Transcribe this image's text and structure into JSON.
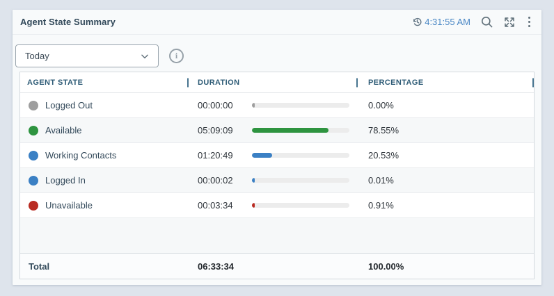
{
  "widget": {
    "title": "Agent State Summary",
    "last_refresh_time": "4:31:55 AM",
    "icons": {
      "history_clock": "history-clock-icon",
      "search": "search-icon",
      "expand": "expand-icon",
      "menu": "kebab-menu-icon",
      "dropdown_chevron": "chevron-down-icon",
      "info": "info-icon"
    }
  },
  "filter_dropdown": {
    "value": "Today"
  },
  "table": {
    "columns": [
      "AGENT STATE",
      "DURATION",
      "PERCENTAGE"
    ],
    "rows": [
      {
        "state": "Logged Out",
        "duration": "00:00:00",
        "percentage": "0.00%",
        "percent_value": 0.0,
        "color": "#9e9e9e"
      },
      {
        "state": "Available",
        "duration": "05:09:09",
        "percentage": "78.55%",
        "percent_value": 78.55,
        "color": "#2e9440"
      },
      {
        "state": "Working Contacts",
        "duration": "01:20:49",
        "percentage": "20.53%",
        "percent_value": 20.53,
        "color": "#3b80c4"
      },
      {
        "state": "Logged In",
        "duration": "00:00:02",
        "percentage": "0.01%",
        "percent_value": 0.01,
        "color": "#3b80c4"
      },
      {
        "state": "Unavailable",
        "duration": "00:03:34",
        "percentage": "0.91%",
        "percent_value": 0.91,
        "color": "#b92b22"
      }
    ],
    "total": {
      "label": "Total",
      "duration": "06:33:34",
      "percentage": "100.00%"
    }
  },
  "colors": {
    "page_background": "#dee4ec",
    "time_text": "#4a87c5",
    "header_text": "#2d5b76",
    "bar_track": "#ececec"
  }
}
